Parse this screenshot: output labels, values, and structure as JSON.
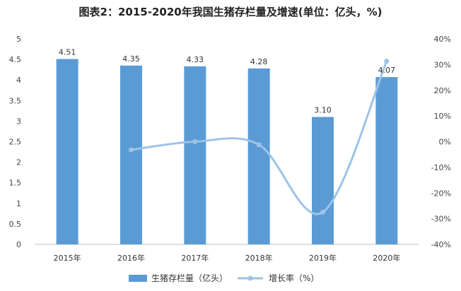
{
  "chart_data": {
    "type": "bar",
    "title": "图表2：2015-2020年我国生猪存栏量及增速(单位：亿头，%)",
    "categories": [
      "2015年",
      "2016年",
      "2017年",
      "2018年",
      "2019年",
      "2020年"
    ],
    "series": [
      {
        "name": "生猪存栏量（亿头）",
        "type": "bar",
        "axis": "left",
        "color": "#5b9bd5",
        "values": [
          4.51,
          4.35,
          4.33,
          4.28,
          3.1,
          4.07
        ],
        "labels": [
          "4.51",
          "4.35",
          "4.33",
          "4.28",
          "3.10",
          "4.07"
        ]
      },
      {
        "name": "增长率（%）",
        "type": "line",
        "axis": "right",
        "color": "#9dc3e6",
        "smooth": true,
        "points": [
          {
            "category": "2016年",
            "value": -3.2
          },
          {
            "category": "2017年",
            "value": 0
          },
          {
            "category": "2018年",
            "value": -1.2
          },
          {
            "category": "2019年",
            "value": -27.5
          },
          {
            "category": "2020年",
            "value": 31.3
          }
        ]
      }
    ],
    "y_left": {
      "min": 0,
      "max": 5,
      "step": 0.5,
      "ticks": [
        "0",
        "0.5",
        "1",
        "1.5",
        "2",
        "2.5",
        "3",
        "3.5",
        "4",
        "4.5",
        "5"
      ]
    },
    "y_right": {
      "min": -40,
      "max": 40,
      "step": 10,
      "ticks": [
        "-40%",
        "-30%",
        "-20%",
        "-10%",
        "0%",
        "10%",
        "20%",
        "30%",
        "40%"
      ]
    },
    "grid": false,
    "legend_position": "bottom",
    "xlabel": "",
    "ylabel": ""
  }
}
